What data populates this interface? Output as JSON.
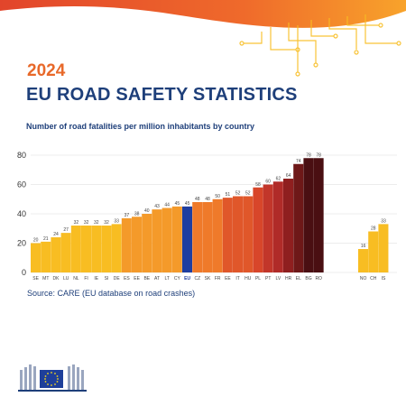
{
  "header": {
    "year": "2024",
    "title": "EU ROAD SAFETY STATISTICS",
    "subtitle": "Number of road fatalities per million inhabitants by country"
  },
  "source": "Source: CARE (EU database on road crashes)",
  "colors": {
    "brand_blue": "#1e3f7a",
    "eu_bar": "#1f3ea0",
    "orange_title": "#e8692a",
    "yellow": "#f8bd22",
    "orange": "#ef7a2a",
    "red": "#d8462a",
    "dark_red": "#8f1f1f",
    "darkest": "#4a0f12"
  },
  "chart_data": {
    "type": "bar",
    "title": "Number of road fatalities per million inhabitants by country",
    "ylim": [
      0,
      80
    ],
    "yticks": [
      0,
      20,
      40,
      60,
      80
    ],
    "grid": true,
    "legend": "none",
    "groups": [
      {
        "categories": [
          "SE",
          "MT",
          "DK",
          "LU",
          "NL",
          "FI",
          "IE",
          "SI",
          "DE",
          "ES",
          "EE",
          "BE",
          "AT",
          "LT",
          "CY",
          "EU",
          "CZ",
          "SK",
          "FR",
          "EE",
          "IT",
          "HU",
          "PL",
          "PT",
          "LV",
          "HR",
          "EL",
          "BG",
          "RO"
        ],
        "values": [
          20,
          21,
          24,
          27,
          32,
          32,
          32,
          32,
          33,
          37,
          38,
          40,
          43,
          44,
          45,
          45,
          48,
          48,
          50,
          51,
          52,
          52,
          58,
          60,
          62,
          64,
          74,
          78,
          78
        ],
        "colors": [
          "#f8bd22",
          "#f8bd22",
          "#f8bd22",
          "#f8bd22",
          "#f8bd22",
          "#f8bd22",
          "#f8bd22",
          "#f8bd22",
          "#f8bd22",
          "#f49a2a",
          "#f49a2a",
          "#f49a2a",
          "#f49a2a",
          "#f49a2a",
          "#f49a2a",
          "#1f3ea0",
          "#ef7a2a",
          "#ef7a2a",
          "#ef7a2a",
          "#e0572a",
          "#e0572a",
          "#e0572a",
          "#d8462a",
          "#c2362a",
          "#b02b28",
          "#8f1f1f",
          "#6e1818",
          "#4a0f12",
          "#4a0f12"
        ]
      },
      {
        "categories": [
          "NO",
          "CH",
          "IS"
        ],
        "values": [
          16,
          28,
          33
        ],
        "colors": [
          "#f8bd22",
          "#f8bd22",
          "#f8bd22"
        ]
      }
    ]
  }
}
